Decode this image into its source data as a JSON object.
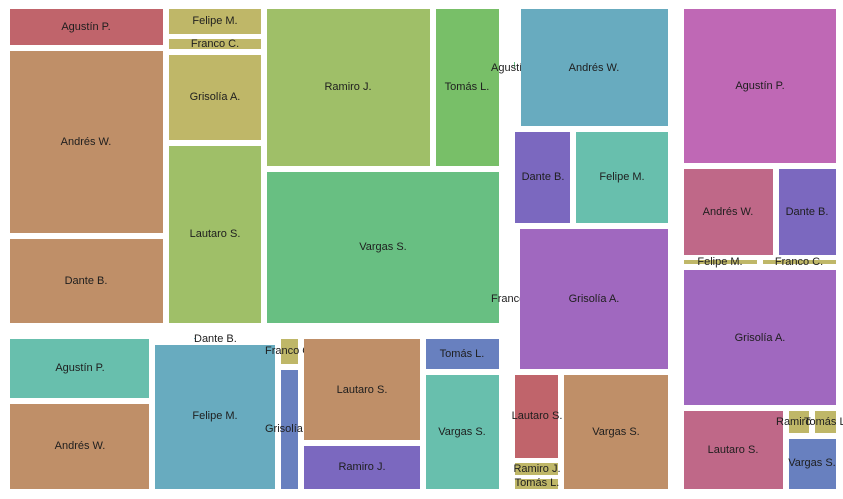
{
  "chart_data": {
    "type": "treemap",
    "palette": {
      "red": "#c0646b",
      "brown": "#bf8f68",
      "olive": "#bfb768",
      "yellowgreen": "#9fbf68",
      "green": "#78bf68",
      "mediumgreen": "#68bf82",
      "teal": "#68bfad",
      "steelblue": "#68abbf",
      "blue": "#6880bf",
      "purple": "#7b68bf",
      "violet": "#a068bf",
      "magenta": "#bf68b5",
      "rose": "#bf6888"
    },
    "groups": [
      {
        "cells": [
          {
            "label": "Agustín P.",
            "color": "red",
            "value": 563
          },
          {
            "label": "Andrés W.",
            "color": "brown",
            "value": 2752
          },
          {
            "label": "Dante B.",
            "color": "brown",
            "value": 1253
          },
          {
            "label": "Felipe M.",
            "color": "olive",
            "value": 252
          },
          {
            "label": "Franco C.",
            "color": "olive",
            "value": 97
          },
          {
            "label": "Grisolía A.",
            "color": "olive",
            "value": 788
          },
          {
            "label": "Lautaro S.",
            "color": "yellowgreen",
            "value": 1623
          },
          {
            "label": "Ramiro J.",
            "color": "yellowgreen",
            "value": 2401
          },
          {
            "label": "Tomás L.",
            "color": "green",
            "value": 999
          },
          {
            "label": "Vargas S.",
            "color": "mediumgreen",
            "value": 3551
          }
        ]
      },
      {
        "cells": [
          {
            "label": "Agustín P.",
            "color": "mediumgreen",
            "value": 8
          },
          {
            "label": "Andrés W.",
            "color": "steelblue",
            "value": 1772
          },
          {
            "label": "Dante B.",
            "color": "purple",
            "value": 508
          },
          {
            "label": "Felipe M.",
            "color": "teal",
            "value": 825
          },
          {
            "label": "Franco C.",
            "color": "violet",
            "value": 8
          },
          {
            "label": "Grisolía A.",
            "color": "violet",
            "value": 2088
          },
          {
            "label": "Lautaro S.",
            "color": "red",
            "value": 422
          },
          {
            "label": "Ramiro J.",
            "color": "olive",
            "value": 46
          },
          {
            "label": "Tomás L.",
            "color": "olive",
            "value": 37
          },
          {
            "label": "Vargas S.",
            "color": "brown",
            "value": 1268
          }
        ]
      },
      {
        "cells": [
          {
            "label": "Agustín P.",
            "color": "teal",
            "value": 852
          },
          {
            "label": "Andrés W.",
            "color": "brown",
            "value": 1272
          },
          {
            "label": "Dante B.",
            "color": "steelblue",
            "value": 8
          },
          {
            "label": "Felipe M.",
            "color": "steelblue",
            "value": 1799
          },
          {
            "label": "Franco C.",
            "color": "olive",
            "value": 117
          },
          {
            "label": "Grisolía A.",
            "color": "blue",
            "value": 299
          },
          {
            "label": "Lautaro S.",
            "color": "brown",
            "value": 1169
          },
          {
            "label": "Ramiro J.",
            "color": "purple",
            "value": 412
          },
          {
            "label": "Tomás L.",
            "color": "blue",
            "value": 211
          },
          {
            "label": "Vargas S.",
            "color": "teal",
            "value": 845
          }
        ]
      },
      {
        "cells": [
          {
            "label": "Agustín P.",
            "color": "magenta",
            "value": 2276
          },
          {
            "label": "Andrés W.",
            "color": "rose",
            "value": 1052
          },
          {
            "label": "Dante B.",
            "color": "purple",
            "value": 702
          },
          {
            "label": "Felipe M.",
            "color": "olive",
            "value": 77
          },
          {
            "label": "Franco C.",
            "color": "olive",
            "value": 69
          },
          {
            "label": "Grisolía A.",
            "color": "violet",
            "value": 2116
          },
          {
            "label": "Lautaro S.",
            "color": "rose",
            "value": 761
          },
          {
            "label": "Ramiro J.",
            "color": "olive",
            "value": 38
          },
          {
            "label": "Tomás L.",
            "color": "olive",
            "value": 38
          },
          {
            "label": "Vargas S.",
            "color": "blue",
            "value": 341
          }
        ]
      }
    ]
  }
}
